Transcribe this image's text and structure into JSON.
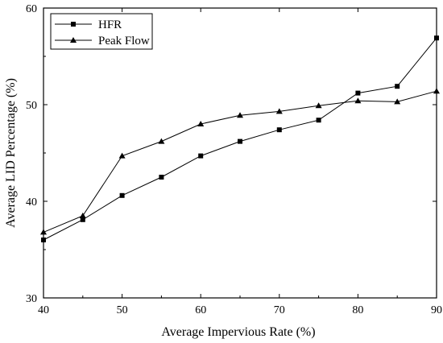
{
  "chart_data": {
    "type": "line",
    "title": "",
    "xlabel": "Average Impervious Rate (%)",
    "ylabel": "Average LID Percentage (%)",
    "xlim": [
      40,
      90
    ],
    "ylim": [
      30,
      60
    ],
    "xticks": [
      40,
      50,
      60,
      70,
      80,
      90
    ],
    "yticks": [
      30,
      40,
      50,
      60
    ],
    "xtick_labels": [
      "40",
      "50",
      "60",
      "70",
      "80",
      "90"
    ],
    "ytick_labels": [
      "30",
      "40",
      "50",
      "60"
    ],
    "grid": false,
    "legend_position": "top-left",
    "x": [
      40,
      45,
      50,
      55,
      60,
      65,
      70,
      75,
      80,
      85,
      90
    ],
    "series": [
      {
        "name": "HFR",
        "marker": "square",
        "color": "#000000",
        "values": [
          36.0,
          38.1,
          40.6,
          42.5,
          44.7,
          46.2,
          47.4,
          48.4,
          51.2,
          51.9,
          56.9
        ]
      },
      {
        "name": "Peak Flow",
        "marker": "triangle",
        "color": "#000000",
        "values": [
          36.8,
          38.5,
          44.7,
          46.2,
          48.0,
          48.9,
          49.3,
          49.9,
          50.4,
          50.3,
          51.4
        ]
      }
    ]
  }
}
